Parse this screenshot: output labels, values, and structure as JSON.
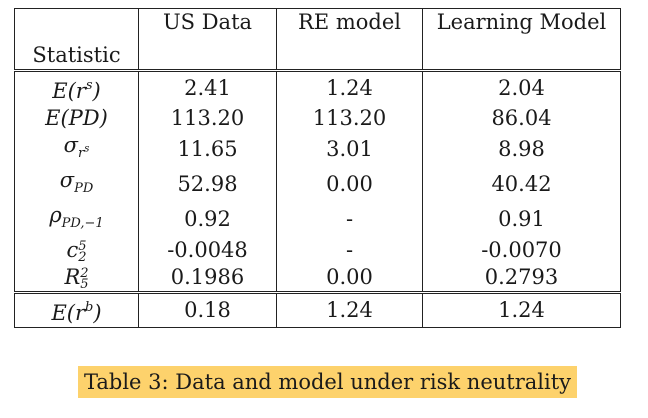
{
  "table": {
    "headers": {
      "statistic": "Statistic",
      "us": "US Data",
      "re": "RE model",
      "learning": "Learning Model"
    },
    "rows": [
      {
        "label": "E(r^s)",
        "us": "2.41",
        "re": "1.24",
        "learning": "2.04"
      },
      {
        "label": "E(PD)",
        "us": "113.20",
        "re": "113.20",
        "learning": "86.04"
      },
      {
        "label": "σ_{r^s}",
        "us": "11.65",
        "re": "3.01",
        "learning": "8.98"
      },
      {
        "label": "σ_{PD}",
        "us": "52.98",
        "re": "0.00",
        "learning": "40.42"
      },
      {
        "label": "ρ_{PD,-1}",
        "us": "0.92",
        "re": "-",
        "learning": "0.91"
      },
      {
        "label": "c_2^5",
        "us": "-0.0048",
        "re": "-",
        "learning": "-0.0070"
      },
      {
        "label": "R_5^2",
        "us": "0.1986",
        "re": "0.00",
        "learning": "0.2793"
      },
      {
        "label": "E(r^b)",
        "us": "0.18",
        "re": "1.24",
        "learning": "1.24"
      }
    ]
  },
  "caption": "Table 3: Data and model under risk neutrality",
  "colors": {
    "caption_highlight": "#fdd26c"
  }
}
